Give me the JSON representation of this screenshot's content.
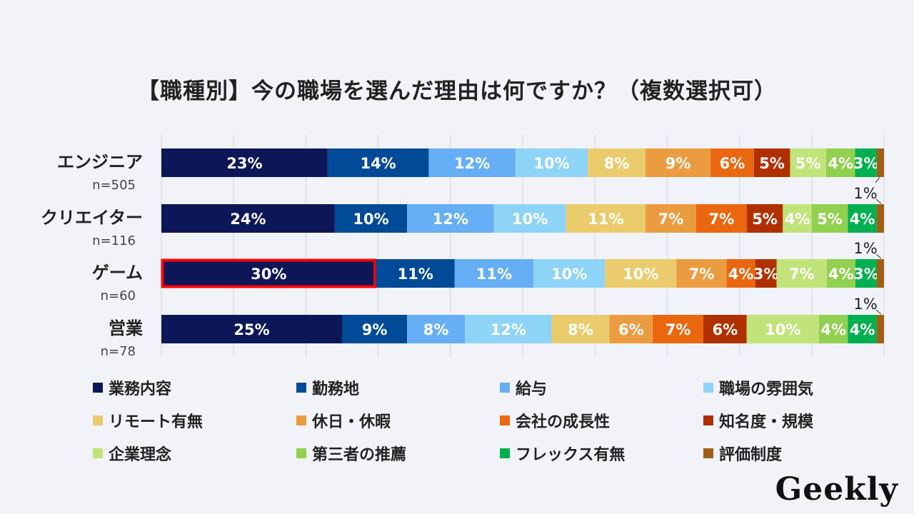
{
  "title": "【職種別】今の職場を選んだ理由は何ですか？（複数選択可）",
  "logo_text": "Geekly",
  "chart_data": {
    "type": "bar",
    "orientation": "horizontal-stacked-100",
    "title": "【職種別】今の職場を選んだ理由は何ですか？（複数選択可）",
    "xlim": [
      0,
      100
    ],
    "grid": true,
    "legend_position": "bottom",
    "categories": [
      {
        "label": "エンジニア",
        "n": "n=505"
      },
      {
        "label": "クリエイター",
        "n": "n=116"
      },
      {
        "label": "ゲーム",
        "n": "n=60",
        "highlight_series": 0
      },
      {
        "label": "営業",
        "n": "n=78"
      }
    ],
    "series": [
      {
        "name": "業務内容",
        "color": "#0d1758",
        "values": [
          23,
          24,
          30,
          25
        ]
      },
      {
        "name": "勤務地",
        "color": "#004a97",
        "values": [
          14,
          10,
          11,
          9
        ]
      },
      {
        "name": "給与",
        "color": "#66aef5",
        "values": [
          12,
          12,
          11,
          8
        ]
      },
      {
        "name": "職場の雰囲気",
        "color": "#8ed4f8",
        "values": [
          10,
          10,
          10,
          12
        ]
      },
      {
        "name": "リモート有無",
        "color": "#ebcc6c",
        "values": [
          8,
          11,
          10,
          8
        ]
      },
      {
        "name": "休日・休暇",
        "color": "#ec9c40",
        "values": [
          9,
          7,
          7,
          6
        ]
      },
      {
        "name": "会社の成長性",
        "color": "#ea6710",
        "values": [
          6,
          7,
          4,
          7
        ]
      },
      {
        "name": "知名度・規模",
        "color": "#b03000",
        "values": [
          5,
          5,
          3,
          6
        ]
      },
      {
        "name": "企業理念",
        "color": "#c0e47a",
        "values": [
          5,
          4,
          7,
          10
        ]
      },
      {
        "name": "第三者の推薦",
        "color": "#92d050",
        "values": [
          4,
          5,
          4,
          4
        ]
      },
      {
        "name": "フレックス有無",
        "color": "#00b050",
        "values": [
          3,
          4,
          3,
          4
        ]
      },
      {
        "name": "評価制度",
        "color": "#a05f14",
        "values": [
          1,
          1,
          1,
          1
        ]
      }
    ],
    "outside_labels": [
      {
        "row": 1,
        "text": "1%"
      },
      {
        "row": 2,
        "text": "1%"
      },
      {
        "row": 3,
        "text": "1%"
      }
    ]
  }
}
